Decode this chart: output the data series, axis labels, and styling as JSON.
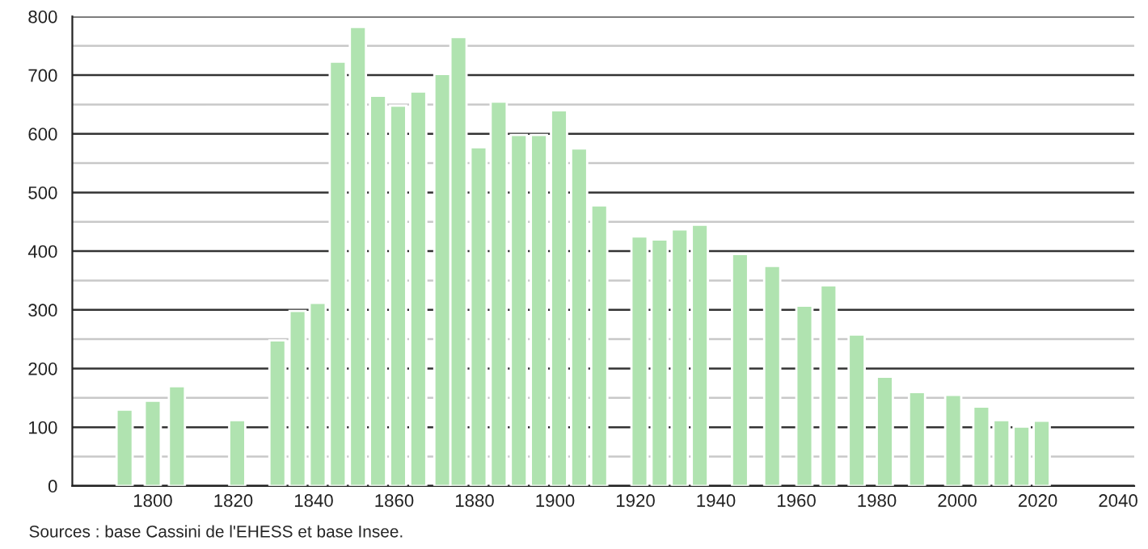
{
  "chart_data": {
    "type": "bar",
    "x": [
      1793,
      1800,
      1806,
      1821,
      1831,
      1836,
      1841,
      1846,
      1851,
      1856,
      1861,
      1866,
      1872,
      1876,
      1881,
      1886,
      1891,
      1896,
      1901,
      1906,
      1911,
      1921,
      1926,
      1931,
      1936,
      1946,
      1954,
      1962,
      1968,
      1975,
      1982,
      1990,
      1999,
      2006,
      2011,
      2016,
      2021
    ],
    "values": [
      130,
      145,
      170,
      112,
      248,
      298,
      312,
      723,
      782,
      665,
      648,
      672,
      702,
      765,
      577,
      655,
      598,
      598,
      640,
      575,
      478,
      425,
      420,
      437,
      445,
      395,
      375,
      307,
      342,
      258,
      186,
      160,
      155,
      135,
      112,
      101,
      111
    ],
    "color": "#b0e3b0",
    "xlim": [
      1780,
      2044
    ],
    "xticks": [
      1800,
      1820,
      1840,
      1860,
      1880,
      1900,
      1920,
      1940,
      1960,
      1980,
      2000,
      2020,
      2040
    ],
    "ylim": [
      0,
      800
    ],
    "yticks": [
      0,
      {
        "value": 50,
        "label": null
      },
      100,
      {
        "value": 150,
        "label": null
      },
      200,
      {
        "value": 250,
        "label": null
      },
      300,
      {
        "value": 350,
        "label": null
      },
      400,
      {
        "value": 450,
        "label": null
      },
      500,
      {
        "value": 550,
        "label": null
      },
      600,
      {
        "value": 650,
        "label": null
      },
      700,
      {
        "value": 750,
        "label": null
      },
      800
    ],
    "grid": "y",
    "annotations": [
      "Sources : base Cassini de l'EHESS et base Insee."
    ]
  }
}
